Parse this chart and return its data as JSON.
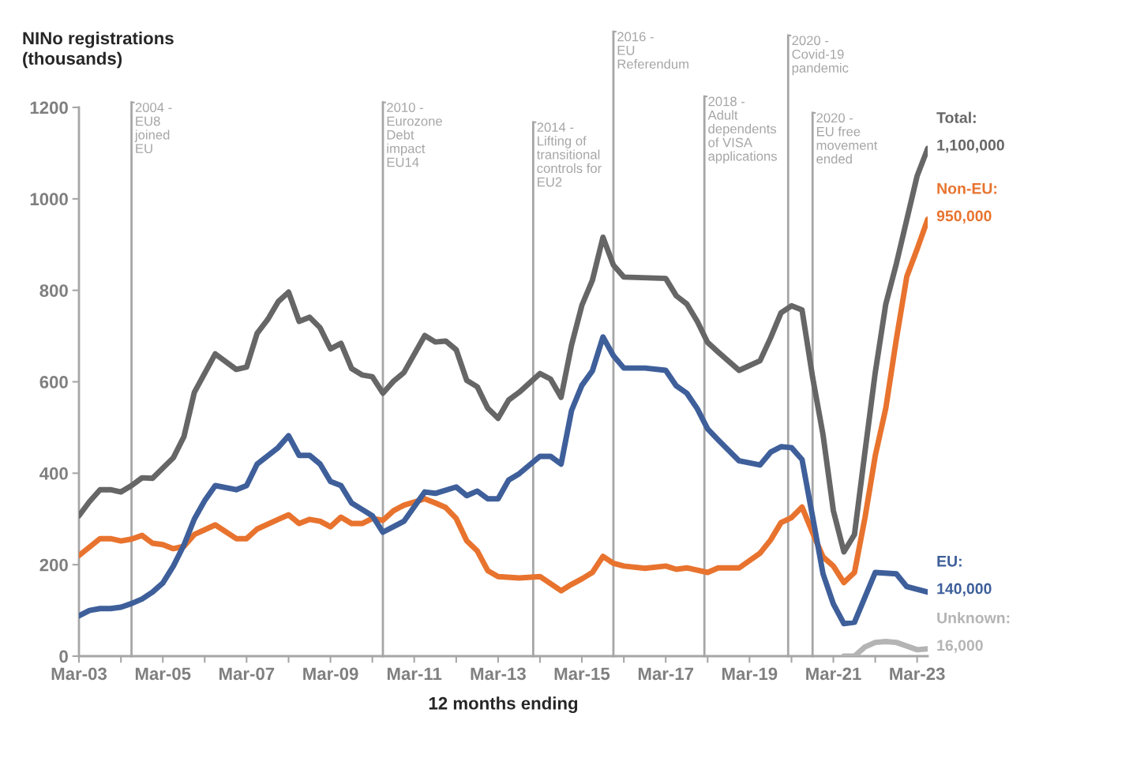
{
  "chart_data": {
    "type": "line",
    "title": "NINo registrations\n(thousands)",
    "xlabel": "12 months ending",
    "xlim": [
      "2003-03",
      "2023-06"
    ],
    "ylim": [
      0,
      1200
    ],
    "yticks": [
      0,
      200,
      400,
      600,
      800,
      1000,
      1200
    ],
    "xticks": [
      {
        "value": "2003-03",
        "label": "Mar-03"
      },
      {
        "value": "2004-03",
        "label": null
      },
      {
        "value": "2005-03",
        "label": "Mar-05"
      },
      {
        "value": "2006-03",
        "label": null
      },
      {
        "value": "2007-03",
        "label": "Mar-07"
      },
      {
        "value": "2008-03",
        "label": null
      },
      {
        "value": "2009-03",
        "label": "Mar-09"
      },
      {
        "value": "2010-03",
        "label": null
      },
      {
        "value": "2011-03",
        "label": "Mar-11"
      },
      {
        "value": "2012-03",
        "label": null
      },
      {
        "value": "2013-03",
        "label": "Mar-13"
      },
      {
        "value": "2014-03",
        "label": null
      },
      {
        "value": "2015-03",
        "label": "Mar-15"
      },
      {
        "value": "2016-03",
        "label": null
      },
      {
        "value": "2017-03",
        "label": "Mar-17"
      },
      {
        "value": "2018-03",
        "label": null
      },
      {
        "value": "2019-03",
        "label": "Mar-19"
      },
      {
        "value": "2020-03",
        "label": null
      },
      {
        "value": "2021-03",
        "label": "Mar-21"
      },
      {
        "value": "2022-03",
        "label": null
      },
      {
        "value": "2023-03",
        "label": "Mar-23"
      }
    ],
    "grid": false,
    "legend": false,
    "marker": "none",
    "line_style": "solid",
    "series": [
      {
        "name": "Total:",
        "color": "#666666",
        "x": [
          "2003-03",
          "2003-06",
          "2003-09",
          "2003-12",
          "2004-03",
          "2004-06",
          "2004-09",
          "2004-12",
          "2005-06",
          "2005-09",
          "2005-12",
          "2006-06",
          "2006-12",
          "2007-03",
          "2007-06",
          "2007-09",
          "2007-12",
          "2008-03",
          "2008-06",
          "2008-09",
          "2008-12",
          "2009-03",
          "2009-06",
          "2009-09",
          "2009-12",
          "2010-03",
          "2010-06",
          "2010-09",
          "2010-12",
          "2011-06",
          "2011-09",
          "2011-12",
          "2012-03",
          "2012-06",
          "2012-09",
          "2012-12",
          "2013-03",
          "2013-06",
          "2013-09",
          "2014-03",
          "2014-06",
          "2014-09",
          "2014-12",
          "2015-03",
          "2015-06",
          "2015-09",
          "2015-12",
          "2016-03",
          "2017-03",
          "2017-06",
          "2017-09",
          "2017-12",
          "2018-03",
          "2018-06",
          "2018-12",
          "2019-06",
          "2019-09",
          "2019-12",
          "2020-03",
          "2020-06",
          "2020-09",
          "2020-12",
          "2021-03",
          "2021-06",
          "2021-09",
          "2021-12",
          "2022-03",
          "2022-06",
          "2022-09",
          "2023-03",
          "2023-06"
        ],
        "values": [
          307,
          338,
          364,
          364,
          359,
          373,
          390,
          389,
          434,
          480,
          577,
          661,
          627,
          632,
          706,
          736,
          775,
          796,
          732,
          741,
          718,
          672,
          684,
          629,
          615,
          611,
          575,
          601,
          620,
          701,
          687,
          689,
          670,
          603,
          589,
          542,
          520,
          560,
          577,
          618,
          606,
          566,
          680,
          767,
          822,
          916,
          855,
          829,
          826,
          788,
          770,
          732,
          686,
          665,
          625,
          646,
          696,
          751,
          766,
          757,
          610,
          484,
          318,
          228,
          266,
          446,
          620,
          770,
          858,
          1050,
          1110
        ]
      },
      {
        "name": "Non-EU:",
        "color": "#e8732e",
        "x": [
          "2003-03",
          "2003-09",
          "2003-12",
          "2004-03",
          "2004-06",
          "2004-09",
          "2004-12",
          "2005-03",
          "2005-06",
          "2005-09",
          "2005-12",
          "2006-06",
          "2006-12",
          "2007-03",
          "2007-06",
          "2007-12",
          "2008-03",
          "2008-06",
          "2008-09",
          "2008-12",
          "2009-03",
          "2009-06",
          "2009-09",
          "2009-12",
          "2010-03",
          "2010-06",
          "2010-09",
          "2010-12",
          "2011-06",
          "2011-09",
          "2011-12",
          "2012-03",
          "2012-06",
          "2012-09",
          "2012-12",
          "2013-03",
          "2013-09",
          "2014-03",
          "2014-09",
          "2014-12",
          "2015-03",
          "2015-06",
          "2015-09",
          "2015-12",
          "2016-03",
          "2016-09",
          "2017-03",
          "2017-06",
          "2017-09",
          "2018-03",
          "2018-06",
          "2018-12",
          "2019-06",
          "2019-09",
          "2019-12",
          "2020-03",
          "2020-06",
          "2020-09",
          "2020-12",
          "2021-03",
          "2021-06",
          "2021-09",
          "2021-12",
          "2022-03",
          "2022-06",
          "2022-09",
          "2022-12",
          "2023-03",
          "2023-06"
        ],
        "values": [
          220,
          257,
          257,
          252,
          256,
          264,
          247,
          244,
          235,
          240,
          266,
          287,
          257,
          257,
          278,
          299,
          309,
          290,
          299,
          295,
          283,
          304,
          290,
          290,
          301,
          297,
          318,
          330,
          344,
          335,
          325,
          301,
          252,
          230,
          187,
          174,
          171,
          174,
          143,
          157,
          169,
          183,
          218,
          203,
          197,
          192,
          197,
          190,
          193,
          183,
          193,
          193,
          225,
          254,
          292,
          303,
          326,
          270,
          217,
          197,
          161,
          183,
          302,
          438,
          542,
          693,
          830,
          890,
          955
        ]
      },
      {
        "name": "EU:",
        "color": "#3e5f9a",
        "x": [
          "2003-03",
          "2003-06",
          "2003-09",
          "2003-12",
          "2004-03",
          "2004-06",
          "2004-09",
          "2004-12",
          "2005-03",
          "2005-06",
          "2005-09",
          "2005-12",
          "2006-03",
          "2006-06",
          "2006-12",
          "2007-03",
          "2007-06",
          "2007-12",
          "2008-03",
          "2008-06",
          "2008-09",
          "2008-12",
          "2009-03",
          "2009-06",
          "2009-09",
          "2009-12",
          "2010-03",
          "2010-06",
          "2010-12",
          "2011-06",
          "2011-09",
          "2012-03",
          "2012-06",
          "2012-09",
          "2012-12",
          "2013-03",
          "2013-06",
          "2013-09",
          "2014-03",
          "2014-06",
          "2014-09",
          "2014-12",
          "2015-03",
          "2015-06",
          "2015-09",
          "2015-12",
          "2016-03",
          "2016-09",
          "2017-03",
          "2017-06",
          "2017-09",
          "2017-12",
          "2018-03",
          "2018-06",
          "2018-12",
          "2019-06",
          "2019-09",
          "2019-12",
          "2020-03",
          "2020-06",
          "2020-09",
          "2020-12",
          "2021-03",
          "2021-06",
          "2021-09",
          "2022-03",
          "2022-09",
          "2022-12",
          "2023-06"
        ],
        "values": [
          88,
          100,
          104,
          104,
          107,
          115,
          125,
          140,
          160,
          197,
          243,
          300,
          340,
          373,
          364,
          373,
          420,
          456,
          482,
          439,
          439,
          420,
          382,
          373,
          335,
          321,
          307,
          271,
          295,
          359,
          356,
          370,
          351,
          361,
          344,
          344,
          385,
          399,
          437,
          437,
          420,
          537,
          592,
          624,
          698,
          657,
          630,
          630,
          625,
          591,
          575,
          541,
          497,
          473,
          427,
          418,
          446,
          458,
          456,
          430,
          305,
          180,
          114,
          71,
          74,
          183,
          180,
          152,
          140
        ]
      },
      {
        "name": "Unknown:",
        "color": "#b4b4b4",
        "x": [
          "2021-06",
          "2021-09",
          "2021-12",
          "2022-03",
          "2022-06",
          "2022-09",
          "2022-12",
          "2023-03",
          "2023-06"
        ],
        "values": [
          0,
          0,
          20,
          30,
          32,
          30,
          22,
          14,
          16
        ]
      }
    ],
    "annotations": [
      {
        "text": "1,100,000",
        "x": "2023-06",
        "y": 1110
      },
      {
        "text": "950,000",
        "x": "2023-06",
        "y": 955
      },
      {
        "text": "140,000",
        "x": "2023-06",
        "y": 140
      },
      {
        "text": "16,000",
        "x": "2023-06",
        "y": 16
      }
    ],
    "ref_lines": [
      {
        "axis": "x",
        "value": "2004-06",
        "label": "2004 -\nEU8\njoined\nEU",
        "color": "#a6a6a6"
      },
      {
        "axis": "x",
        "value": "2010-06",
        "label": "2010 -\nEurozone\nDebt\nimpact\nEU14",
        "color": "#a6a6a6"
      },
      {
        "axis": "x",
        "value": "2014-01",
        "label": "2014 -\nLifting of\ntransitional\ncontrols for\nEU2",
        "color": "#a6a6a6"
      },
      {
        "axis": "x",
        "value": "2015-12",
        "label": "2016 -\nEU\nReferendum",
        "color": "#a6a6a6"
      },
      {
        "axis": "x",
        "value": "2018-02",
        "label": "2018 -\nAdult\ndependents\nof VISA\napplications",
        "color": "#a6a6a6"
      },
      {
        "axis": "x",
        "value": "2020-02",
        "label": "2020 -\nCovid-19\npandemic",
        "color": "#a6a6a6"
      },
      {
        "axis": "x",
        "value": "2020-09",
        "label": "2020 -\nEU free\nmovement\nended",
        "color": "#a6a6a6"
      }
    ]
  }
}
